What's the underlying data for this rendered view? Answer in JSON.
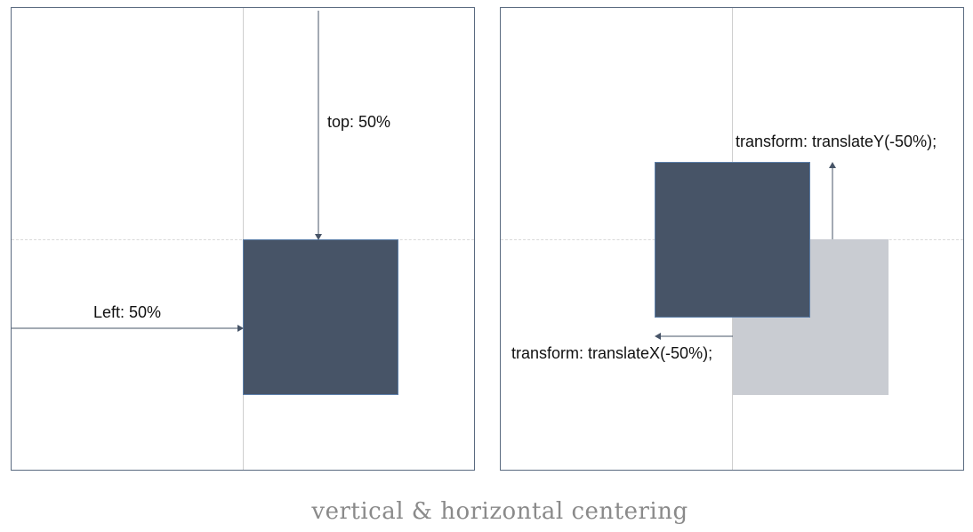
{
  "left_panel": {
    "top_label": "top: 50%",
    "left_label": "Left: 50%"
  },
  "right_panel": {
    "translate_y_label": "transform: translateY(-50%);",
    "translate_x_label": "transform: translateX(-50%);"
  },
  "caption": "vertical & horizontal centering",
  "colors": {
    "box": "#475467",
    "ghost_box": "#c9ccd2",
    "arrow": "#475467",
    "border": "#5a6a80"
  }
}
